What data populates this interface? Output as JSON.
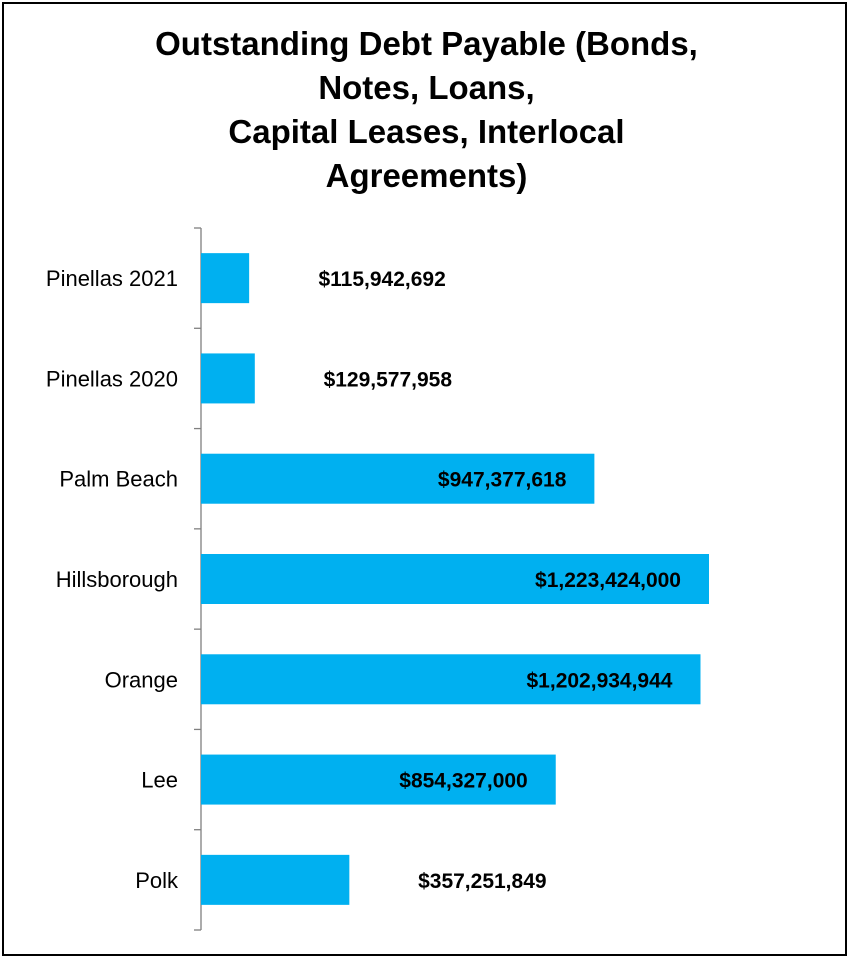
{
  "title_lines": [
    "Outstanding Debt Payable (Bonds,",
    "Notes, Loans,",
    "Capital Leases, Interlocal",
    "Agreements)"
  ],
  "colors": {
    "bar": "#00B0F0",
    "axis": "#808080",
    "text": "#000000",
    "border": "#000000"
  },
  "chart_data": {
    "type": "bar",
    "orientation": "horizontal",
    "title": "Outstanding Debt Payable (Bonds, Notes, Loans, Capital Leases, Interlocal Agreements)",
    "categories": [
      "Pinellas 2021",
      "Pinellas 2020",
      "Palm Beach",
      "Hillsborough",
      "Orange",
      "Lee",
      "Polk"
    ],
    "values": [
      115942692,
      129577958,
      947377618,
      1223424000,
      1202934944,
      854327000,
      357251849
    ],
    "data_labels": [
      "$115,942,692",
      "$129,577,958",
      "$947,377,618",
      "$1,223,424,000",
      "$1,202,934,944",
      "$854,327,000",
      "$357,251,849"
    ],
    "xlim": [
      0,
      1400000000
    ],
    "grid": false,
    "legend": "none"
  }
}
